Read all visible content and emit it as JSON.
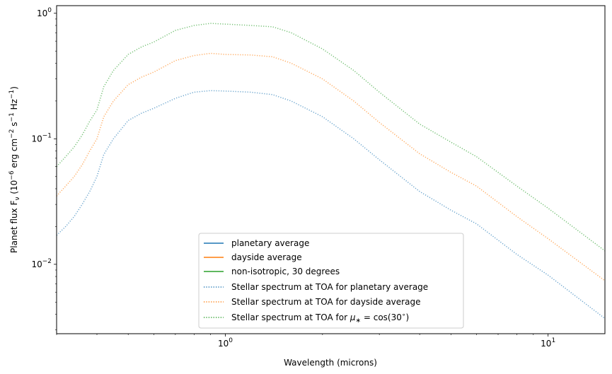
{
  "chart_data": {
    "type": "line",
    "xlabel": "Wavelength (microns)",
    "ylabel": "Planet flux F",
    "ylabel_sub": "ν",
    "ylabel_units_prefix": " (10",
    "ylabel_exp1": "−6",
    "ylabel_units_mid": " erg cm",
    "ylabel_exp2": "−2",
    "ylabel_units_s": " s",
    "ylabel_exp3": "−1",
    "ylabel_units_hz": " Hz",
    "ylabel_exp4": "−1",
    "ylabel_units_end": ")",
    "xscale": "log",
    "yscale": "log",
    "xlim": [
      0.3,
      15
    ],
    "ylim": [
      0.0028,
      1.15
    ],
    "x_ticks": [
      {
        "value": 1,
        "base": "10",
        "exp": "0"
      },
      {
        "value": 10,
        "base": "10",
        "exp": "1"
      }
    ],
    "y_ticks": [
      {
        "value": 0.01,
        "base": "10",
        "exp": "−2"
      },
      {
        "value": 0.1,
        "base": "10",
        "exp": "−1"
      },
      {
        "value": 1,
        "base": "10",
        "exp": "0"
      }
    ],
    "legend": {
      "placement": "lower center",
      "entries": [
        {
          "label": "planetary average",
          "style": "solid",
          "color": "#1f77b4"
        },
        {
          "label": "dayside average",
          "style": "solid",
          "color": "#ff7f0e"
        },
        {
          "label": "non-isotropic, 30 degrees",
          "style": "solid",
          "color": "#2ca02c"
        },
        {
          "label": "Stellar spectrum at TOA for planetary average",
          "style": "dotted",
          "color": "#1f77b4"
        },
        {
          "label": "Stellar spectrum at TOA for dayside average",
          "style": "dotted",
          "color": "#ff7f0e"
        },
        {
          "label_prefix": "Stellar spectrum at TOA for ",
          "label_mu": "μ",
          "label_mu_sub": "∗",
          "label_suffix": " = cos(30",
          "label_deg": "∘",
          "label_end": ")",
          "style": "dotted",
          "color": "#2ca02c"
        }
      ]
    },
    "series": [
      {
        "name": "Stellar spectrum at TOA for planetary average",
        "color": "#1f77b4",
        "style": "dotted",
        "x": [
          0.3,
          0.32,
          0.34,
          0.36,
          0.38,
          0.4,
          0.42,
          0.45,
          0.5,
          0.55,
          0.6,
          0.7,
          0.8,
          0.9,
          1.0,
          1.2,
          1.4,
          1.6,
          2.0,
          2.5,
          3.0,
          4.0,
          5.0,
          6.0,
          8.0,
          10.0,
          15.0
        ],
        "y": [
          0.017,
          0.02,
          0.024,
          0.03,
          0.038,
          0.05,
          0.075,
          0.1,
          0.14,
          0.16,
          0.175,
          0.21,
          0.235,
          0.242,
          0.24,
          0.235,
          0.225,
          0.2,
          0.15,
          0.1,
          0.068,
          0.038,
          0.027,
          0.021,
          0.012,
          0.0082,
          0.0037
        ]
      },
      {
        "name": "Stellar spectrum at TOA for dayside average",
        "color": "#ff7f0e",
        "style": "dotted",
        "x": [
          0.3,
          0.32,
          0.34,
          0.36,
          0.38,
          0.4,
          0.42,
          0.45,
          0.5,
          0.55,
          0.6,
          0.7,
          0.8,
          0.9,
          1.0,
          1.2,
          1.4,
          1.6,
          2.0,
          2.5,
          3.0,
          4.0,
          5.0,
          6.0,
          8.0,
          10.0,
          15.0
        ],
        "y": [
          0.035,
          0.042,
          0.05,
          0.062,
          0.08,
          0.1,
          0.15,
          0.2,
          0.27,
          0.31,
          0.34,
          0.42,
          0.46,
          0.48,
          0.47,
          0.465,
          0.45,
          0.4,
          0.3,
          0.2,
          0.135,
          0.076,
          0.054,
          0.042,
          0.024,
          0.016,
          0.0074
        ]
      },
      {
        "name": "Stellar spectrum at TOA for μ∗ = cos(30∘)",
        "color": "#2ca02c",
        "style": "dotted",
        "x": [
          0.3,
          0.32,
          0.34,
          0.36,
          0.38,
          0.4,
          0.42,
          0.45,
          0.5,
          0.55,
          0.6,
          0.7,
          0.8,
          0.9,
          1.0,
          1.2,
          1.4,
          1.6,
          2.0,
          2.5,
          3.0,
          4.0,
          5.0,
          6.0,
          8.0,
          10.0,
          15.0
        ],
        "y": [
          0.06,
          0.072,
          0.086,
          0.107,
          0.138,
          0.17,
          0.26,
          0.35,
          0.47,
          0.54,
          0.59,
          0.73,
          0.8,
          0.83,
          0.82,
          0.8,
          0.78,
          0.7,
          0.52,
          0.35,
          0.235,
          0.131,
          0.094,
          0.072,
          0.042,
          0.028,
          0.0128
        ]
      }
    ]
  }
}
